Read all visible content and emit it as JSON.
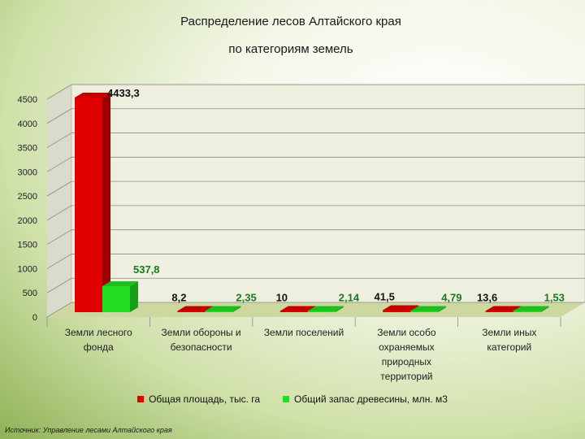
{
  "title_line1": "Распределение лесов Алтайского края",
  "title_line2": "по категориям земель",
  "source": "Источник: Управление лесами Алтайского края",
  "colors": {
    "area": "#e00000",
    "stock": "#22dd22",
    "area_label": "#111111",
    "stock_label": "#1a7a1a"
  },
  "chart_data": {
    "type": "bar",
    "categories": [
      [
        "Земли лесного",
        "фонда"
      ],
      [
        "Земли обороны и",
        "безопасности"
      ],
      [
        "Земли поселений"
      ],
      [
        "Земли особо",
        "охраняемых",
        "природных",
        "территорий"
      ],
      [
        "Земли иных",
        "категорий"
      ]
    ],
    "series": [
      {
        "name": "Общая площадь, тыс. га",
        "values": [
          4433.3,
          8.2,
          10,
          41.5,
          13.6
        ],
        "labels": [
          "4433,3",
          "8,2",
          "10",
          "41,5",
          "13,6"
        ]
      },
      {
        "name": "Общий запас древесины, млн. м3",
        "values": [
          537.8,
          2.35,
          2.14,
          4.79,
          1.53
        ],
        "labels": [
          "537,8",
          "2,35",
          "2,14",
          "4,79",
          "1,53"
        ]
      }
    ],
    "ylim": [
      0,
      4500
    ],
    "yticks": [
      "0",
      "500",
      "1000",
      "1500",
      "2000",
      "2500",
      "3000",
      "3500",
      "4000",
      "4500"
    ],
    "grid": true,
    "legend": "bottom"
  }
}
